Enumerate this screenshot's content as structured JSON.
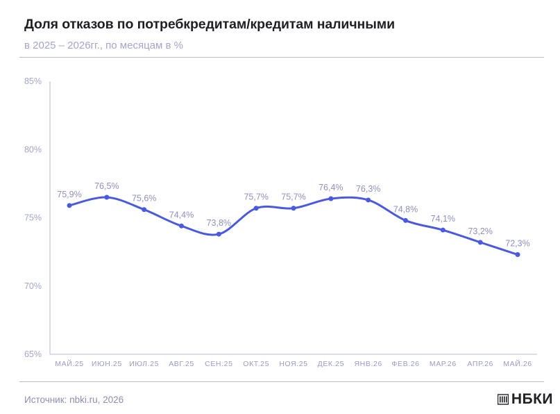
{
  "header": {
    "title": "Доля отказов по потребкредитам/кредитам наличными",
    "subtitle": "в 2025 – 2026гг., по месяцам в %"
  },
  "footer": {
    "source": "Источник: nbki.ru, 2026",
    "logo_text": "НБКИ",
    "logo_icon": "nbki-building-icon"
  },
  "colors": {
    "line": "#4a5ae0",
    "axis": "#b9b9d9",
    "tick_text": "#a4a4cc",
    "label_text": "#8f8fc1"
  },
  "chart_data": {
    "type": "line",
    "title": "Доля отказов по потребкредитам/кредитам наличными",
    "subtitle": "в 2025 – 2026гг., по месяцам в %",
    "categories": [
      "МАЙ.25",
      "ИЮН.25",
      "ИЮЛ.25",
      "АВГ.25",
      "СЕН.25",
      "ОКТ.25",
      "НОЯ.25",
      "ДЕК.25",
      "ЯНВ.26",
      "ФЕВ.26",
      "МАР.26",
      "АПР.26",
      "МАЙ.26"
    ],
    "values": [
      75.9,
      76.5,
      75.6,
      74.4,
      73.8,
      75.7,
      75.7,
      76.4,
      76.3,
      74.8,
      74.1,
      73.2,
      72.3
    ],
    "data_labels": [
      "75,9%",
      "76,5%",
      "75,6%",
      "74,4%",
      "73,8%",
      "75,7%",
      "75,7%",
      "76,4%",
      "76,3%",
      "74,8%",
      "74,1%",
      "73,2%",
      "72,3%"
    ],
    "ylim": [
      65,
      85
    ],
    "yticks": [
      65,
      70,
      75,
      80,
      85
    ],
    "ytick_labels": [
      "65%",
      "70%",
      "75%",
      "80%",
      "85%"
    ],
    "grid": false,
    "legend": "none",
    "smooth": true
  }
}
